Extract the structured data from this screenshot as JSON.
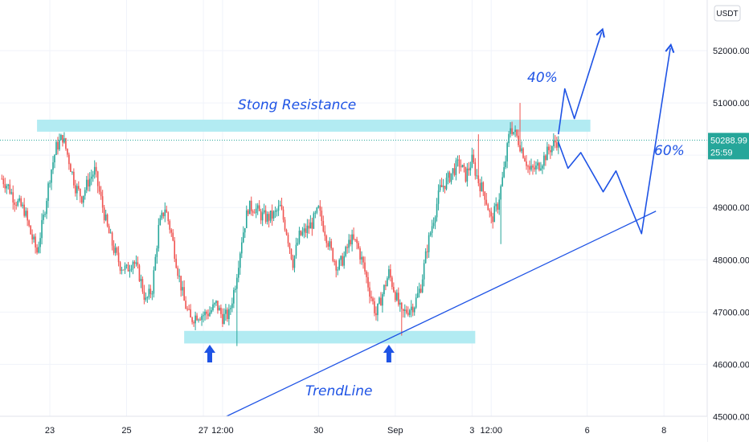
{
  "chart_data": {
    "type": "candlestick",
    "currency": "USDT",
    "ylim": [
      44950,
      52650
    ],
    "y_ticks": [
      45000,
      46000,
      47000,
      48000,
      49000,
      50000,
      51000,
      52000
    ],
    "y_tick_labels": [
      "45000.00",
      "46000.00",
      "47000.00",
      "48000.00",
      "49000.00",
      "50000.00",
      "51000.00",
      "52000.00"
    ],
    "x_ticks": [
      {
        "label": "23",
        "t": 0
      },
      {
        "label": "25",
        "t": 48
      },
      {
        "label": "27",
        "t": 96
      },
      {
        "label": "12:00",
        "t": 108
      },
      {
        "label": "30",
        "t": 168
      },
      {
        "label": "Sep",
        "t": 216
      },
      {
        "label": "3",
        "t": 264
      },
      {
        "label": "12:00",
        "t": 276
      },
      {
        "label": "6",
        "t": 336
      },
      {
        "label": "8",
        "t": 384
      }
    ],
    "time_unit": "hours since Aug 23 00:00",
    "last_price": {
      "value": 50288.99,
      "label": "50288.99",
      "countdown": "25:59",
      "color": "#26a69a"
    },
    "colors": {
      "up": "#26a69a",
      "down": "#ef5350",
      "zone": "#b2ebf2",
      "annotation": "#1e53e5"
    },
    "waypoints": [
      [
        -30,
        49550
      ],
      [
        -26,
        49400
      ],
      [
        -22,
        49150
      ],
      [
        -16,
        48950
      ],
      [
        -12,
        48500
      ],
      [
        -8,
        48150
      ],
      [
        -4,
        48800
      ],
      [
        0,
        49600
      ],
      [
        4,
        50150
      ],
      [
        8,
        50350
      ],
      [
        12,
        49900
      ],
      [
        16,
        49400
      ],
      [
        20,
        49200
      ],
      [
        24,
        49500
      ],
      [
        28,
        49700
      ],
      [
        32,
        49150
      ],
      [
        36,
        48600
      ],
      [
        40,
        48200
      ],
      [
        44,
        47900
      ],
      [
        48,
        47800
      ],
      [
        52,
        48000
      ],
      [
        56,
        47700
      ],
      [
        60,
        47200
      ],
      [
        64,
        47450
      ],
      [
        68,
        48600
      ],
      [
        72,
        49000
      ],
      [
        76,
        48500
      ],
      [
        80,
        47800
      ],
      [
        84,
        47200
      ],
      [
        88,
        46850
      ],
      [
        92,
        46950
      ],
      [
        96,
        46950
      ],
      [
        100,
        47000
      ],
      [
        104,
        47150
      ],
      [
        108,
        46900
      ],
      [
        112,
        46950
      ],
      [
        116,
        47550
      ],
      [
        120,
        48400
      ],
      [
        124,
        49000
      ],
      [
        128,
        49000
      ],
      [
        132,
        48850
      ],
      [
        136,
        48800
      ],
      [
        140,
        48850
      ],
      [
        144,
        49000
      ],
      [
        148,
        48550
      ],
      [
        152,
        47950
      ],
      [
        156,
        48450
      ],
      [
        160,
        48550
      ],
      [
        164,
        48700
      ],
      [
        168,
        48950
      ],
      [
        172,
        48550
      ],
      [
        176,
        48150
      ],
      [
        180,
        47850
      ],
      [
        184,
        48050
      ],
      [
        188,
        48400
      ],
      [
        192,
        48300
      ],
      [
        196,
        47900
      ],
      [
        200,
        47400
      ],
      [
        204,
        46950
      ],
      [
        208,
        47350
      ],
      [
        212,
        47750
      ],
      [
        216,
        47350
      ],
      [
        220,
        46950
      ],
      [
        224,
        47050
      ],
      [
        228,
        47150
      ],
      [
        232,
        47500
      ],
      [
        236,
        48250
      ],
      [
        240,
        48800
      ],
      [
        244,
        49350
      ],
      [
        248,
        49500
      ],
      [
        252,
        49700
      ],
      [
        256,
        49850
      ],
      [
        260,
        49600
      ],
      [
        264,
        49900
      ],
      [
        268,
        49500
      ],
      [
        272,
        49250
      ],
      [
        276,
        48750
      ],
      [
        280,
        49050
      ],
      [
        284,
        49700
      ],
      [
        288,
        50550
      ],
      [
        292,
        50350
      ],
      [
        296,
        50050
      ],
      [
        300,
        49700
      ],
      [
        304,
        49750
      ],
      [
        308,
        49900
      ],
      [
        312,
        50100
      ],
      [
        316,
        50250
      ],
      [
        318,
        50290
      ]
    ],
    "extra_wicks": [
      {
        "t": 117,
        "low": 46350
      },
      {
        "t": 220,
        "low": 46550
      },
      {
        "t": 268,
        "high": 50400
      },
      {
        "t": 282,
        "low": 48300
      },
      {
        "t": 294,
        "high": 51000
      }
    ],
    "annotations": {
      "resistance_label": "Stong Resistance",
      "trendline_label": "TrendLine",
      "pct_40": "40%",
      "pct_60": "60%"
    },
    "resistance_zone": {
      "t0": -8,
      "t1": 338,
      "low": 50450,
      "high": 50680
    },
    "support_zone": {
      "t0": 84,
      "t1": 266,
      "low": 46400,
      "high": 46640
    },
    "trendline": {
      "points": [
        [
          110,
          45000
        ],
        [
          379,
          48930
        ]
      ]
    },
    "projection_40": [
      [
        318,
        50400
      ],
      [
        322,
        51270
      ],
      [
        328,
        50700
      ],
      [
        345,
        52350
      ]
    ],
    "projection_60": [
      [
        318,
        50250
      ],
      [
        324,
        49750
      ],
      [
        332,
        50050
      ],
      [
        346,
        49300
      ],
      [
        354,
        49700
      ],
      [
        370,
        48500
      ],
      [
        388,
        52050
      ]
    ],
    "arrows_up": [
      {
        "t": 100
      },
      {
        "t": 212
      }
    ]
  }
}
